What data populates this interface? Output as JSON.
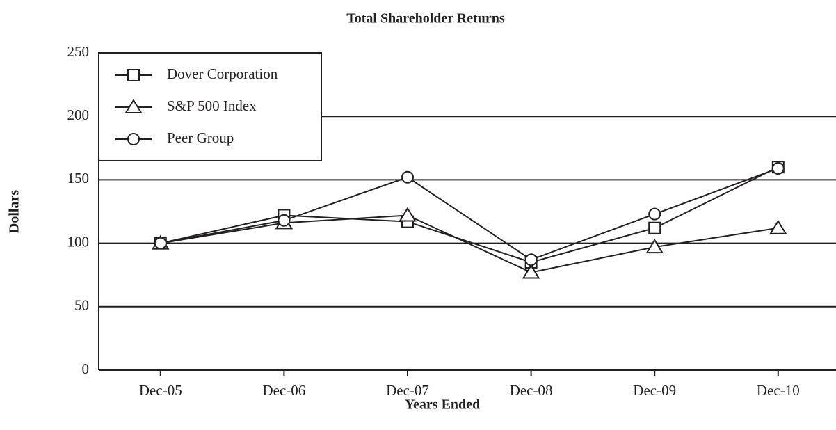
{
  "chart_data": {
    "type": "line",
    "title": "Total Shareholder Returns",
    "x_label": "Years Ended",
    "y_label": "Dollars",
    "categories": [
      "Dec-05",
      "Dec-06",
      "Dec-07",
      "Dec-08",
      "Dec-09",
      "Dec-10"
    ],
    "series": [
      {
        "name": "Dover Corporation",
        "color": "#231f20",
        "marker": "square",
        "values": [
          100,
          122,
          117,
          85,
          112,
          160
        ]
      },
      {
        "name": "S&P 500 Index",
        "color": "#231f20",
        "marker": "triangle",
        "values": [
          100,
          116,
          122,
          77,
          97,
          112
        ]
      },
      {
        "name": "Peer Group",
        "color": "#231f20",
        "marker": "circle",
        "values": [
          100,
          118,
          152,
          87,
          123,
          159
        ]
      }
    ],
    "ylim": [
      0,
      250
    ],
    "yticks": [
      0,
      50,
      100,
      150,
      200,
      250
    ],
    "grid": true,
    "legend": "upper left"
  }
}
